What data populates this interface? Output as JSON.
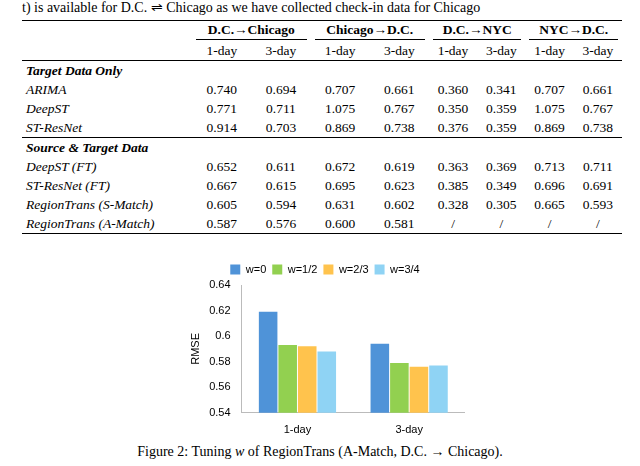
{
  "header": {
    "text": "t) is available for D.C. ⇌ Chicago as we have collected check-in data for Chicago"
  },
  "table": {
    "column_groups": [
      "D.C.→Chicago",
      "Chicago→D.C.",
      "D.C.→NYC",
      "NYC→D.C."
    ],
    "subcolumns": [
      "1-day",
      "3-day"
    ],
    "sections": [
      {
        "title": "Target Data Only",
        "rows": [
          {
            "label": "ARIMA",
            "values": [
              "0.740",
              "0.694",
              "0.707",
              "0.661",
              "0.360",
              "0.341",
              "0.707",
              "0.661"
            ]
          },
          {
            "label": "DeepST",
            "values": [
              "0.771",
              "0.711",
              "1.075",
              "0.767",
              "0.350",
              "0.359",
              "1.075",
              "0.767"
            ]
          },
          {
            "label": "ST-ResNet",
            "values": [
              "0.914",
              "0.703",
              "0.869",
              "0.738",
              "0.376",
              "0.359",
              "0.869",
              "0.738"
            ]
          }
        ]
      },
      {
        "title": "Source & Target Data",
        "rows": [
          {
            "label": "DeepST (FT)",
            "values": [
              "0.652",
              "0.611",
              "0.672",
              "0.619",
              "0.363",
              "0.369",
              "0.713",
              "0.711"
            ]
          },
          {
            "label": "ST-ResNet (FT)",
            "values": [
              "0.667",
              "0.615",
              "0.695",
              "0.623",
              "0.385",
              "0.349",
              "0.696",
              "0.691"
            ]
          },
          {
            "label": "RegionTrans (S-Match)",
            "values": [
              "0.605",
              "0.594",
              "0.631",
              "0.602",
              "0.328",
              "0.305",
              "0.665",
              "0.593"
            ]
          },
          {
            "label": "RegionTrans (A-Match)",
            "values": [
              "0.587",
              "0.576",
              "0.600",
              "0.581",
              "/",
              "/",
              "/",
              "/"
            ]
          }
        ]
      }
    ]
  },
  "chart_data": {
    "type": "bar",
    "y_label": "RMSE",
    "categories": [
      "1-day",
      "3-day"
    ],
    "series": [
      {
        "name": "w=0",
        "color": "#4f93d8",
        "values": [
          0.619,
          0.594
        ]
      },
      {
        "name": "w=1/2",
        "color": "#92d050",
        "values": [
          0.593,
          0.579
        ]
      },
      {
        "name": "w=2/3",
        "color": "#ffc34d",
        "values": [
          0.592,
          0.576
        ]
      },
      {
        "name": "w=3/4",
        "color": "#8fd3f4",
        "values": [
          0.588,
          0.577
        ]
      }
    ],
    "ylim": [
      0.54,
      0.64
    ],
    "yticks": [
      0.54,
      0.56,
      0.58,
      0.6,
      0.62,
      0.64
    ],
    "grid": false,
    "legend": "top"
  },
  "caption": {
    "prefix": "Figure 2: Tuning ",
    "variable": "w",
    "suffix": " of RegionTrans (A-Match, D.C. → Chicago)."
  }
}
